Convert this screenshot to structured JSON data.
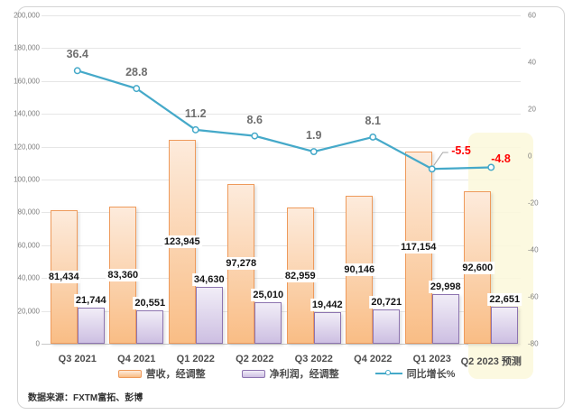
{
  "chart_data": {
    "type": "combo-bar-line",
    "categories": [
      "Q3 2021",
      "Q4 2021",
      "Q1 2022",
      "Q2 2022",
      "Q3 2022",
      "Q4 2022",
      "Q1 2023",
      "Q2 2023 预测"
    ],
    "series": [
      {
        "name": "营收，经调整",
        "type": "bar",
        "axis": "left",
        "values": [
          81434,
          83360,
          123945,
          97278,
          82959,
          90146,
          117154,
          92600
        ],
        "border_color": "#EE9A5B",
        "fill_top": "#FDEBDC",
        "fill_bottom": "#F9BD85",
        "label_position": "inside-center"
      },
      {
        "name": "净利润，经调整",
        "type": "bar",
        "axis": "left",
        "values": [
          21744,
          20551,
          34630,
          25010,
          19442,
          20721,
          29998,
          22651
        ],
        "border_color": "#8D74B0",
        "fill_top": "#F1EDF7",
        "fill_bottom": "#CDBFE2",
        "label_position": "outside-end"
      },
      {
        "name": "同比增长%",
        "type": "line",
        "axis": "right",
        "values": [
          36.4,
          28.8,
          11.2,
          8.6,
          1.9,
          8.1,
          -5.5,
          -4.8
        ],
        "line_color": "#45A9C9",
        "marker": "open-circle",
        "label_color": "#6E6E6E",
        "negative_label_color": "#FF0000"
      }
    ],
    "left_axis": {
      "min": 0,
      "max": 200000,
      "step": 20000,
      "tick_format": "thousands-comma"
    },
    "right_axis": {
      "min": -80,
      "max": 60,
      "step": 20
    },
    "grid": true,
    "legend_position": "bottom",
    "highlight_last_category": {
      "fill": "#FBF8DB",
      "meaning": "forecast column Q2 2023 预测"
    }
  },
  "source_note": "数据来源：FXTM富拓、彭博"
}
